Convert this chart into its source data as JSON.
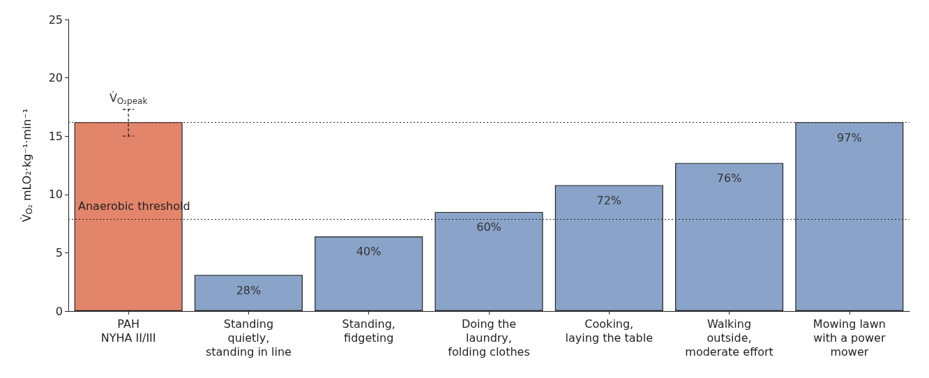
{
  "chart_data": {
    "type": "bar",
    "ylabel": "V̇$_{O₂}$ mLO₂·kg⁻¹·min⁻¹",
    "categories": [
      "PAH\nNYHA II/III",
      "Standing\nquietly,\nstanding in line",
      "Standing,\nfidgeting",
      "Doing the\nlaundry,\nfolding clothes",
      "Cooking,\nlaying the table",
      "Walking\noutside,\nmoderate effort",
      "Mowing lawn\nwith a power\nmower"
    ],
    "values": [
      16.2,
      3.1,
      6.4,
      8.5,
      10.8,
      12.7,
      16.2
    ],
    "colors": [
      "#e3856b",
      "#89a4c8",
      "#89a4c8",
      "#89a4c8",
      "#89a4c8",
      "#89a4c8",
      "#89a4c8"
    ],
    "errors": [
      [
        15,
        17.3
      ],
      null,
      null,
      null,
      null,
      null,
      null
    ],
    "annotations": [
      {
        "text": "V̇$_{O₂peak}$",
        "x": "PAH\nNYHA II/III",
        "y": 17.3
      },
      {
        "text": "28%",
        "x": "Standing\nquietly,\nstanding in line",
        "y": 3.1
      },
      {
        "text": "40%",
        "x": "Standing,\nfidgeting",
        "y": 6.4
      },
      {
        "text": "60%",
        "x": "Doing the\nlaundry,\nfolding clothes",
        "y": 8.5
      },
      {
        "text": "72%",
        "x": "Cooking,\nlaying the table",
        "y": 10.8
      },
      {
        "text": "76%",
        "x": "Walking\noutside,\nmoderate effort",
        "y": 12.7
      },
      {
        "text": "97%",
        "x": "Mowing lawn\nwith a power\nmower",
        "y": 16.2
      }
    ],
    "ref_lines": [
      {
        "axis": "y",
        "value": 16.2,
        "line_style": "dotted"
      },
      {
        "axis": "y",
        "value": 7.9,
        "label": "Anaerobic threshold",
        "line_style": "dotted"
      }
    ],
    "ylim": [
      0,
      25
    ],
    "yticks": [
      0,
      5,
      10,
      15,
      20,
      25
    ],
    "grid": false
  }
}
